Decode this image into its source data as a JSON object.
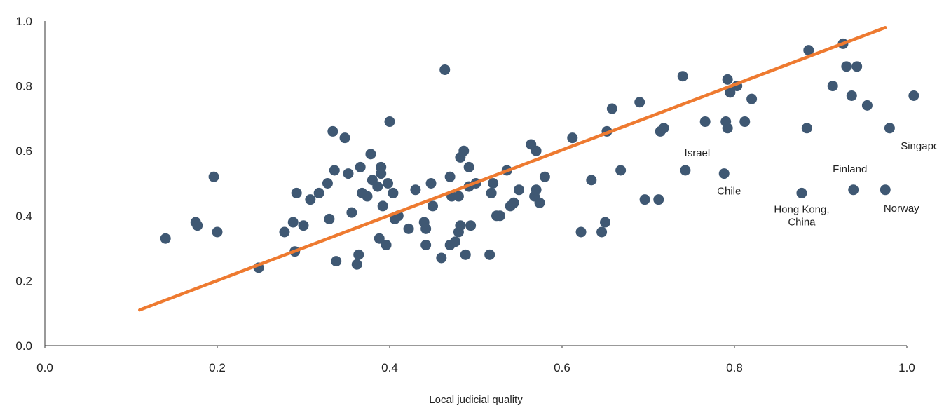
{
  "chart_data": {
    "type": "scatter",
    "title": "",
    "xlabel": "Local judicial quality",
    "ylabel": "",
    "xlim": [
      0,
      1
    ],
    "ylim": [
      0,
      1
    ],
    "x_ticks": [
      "0.0",
      "0.2",
      "0.4",
      "0.6",
      "0.8",
      "1.0"
    ],
    "y_ticks": [
      "0.0",
      "0.2",
      "0.4",
      "0.6",
      "0.8",
      "1.0"
    ],
    "grid": false,
    "colors": {
      "points": "#3f5873",
      "trend": "#ee7a30",
      "axis": "#333333"
    },
    "points": [
      [
        0.14,
        0.33
      ],
      [
        0.175,
        0.38
      ],
      [
        0.177,
        0.37
      ],
      [
        0.196,
        0.52
      ],
      [
        0.2,
        0.35
      ],
      [
        0.248,
        0.24
      ],
      [
        0.278,
        0.35
      ],
      [
        0.288,
        0.38
      ],
      [
        0.29,
        0.29
      ],
      [
        0.292,
        0.47
      ],
      [
        0.3,
        0.37
      ],
      [
        0.308,
        0.45
      ],
      [
        0.318,
        0.47
      ],
      [
        0.328,
        0.5
      ],
      [
        0.33,
        0.39
      ],
      [
        0.334,
        0.66
      ],
      [
        0.336,
        0.54
      ],
      [
        0.338,
        0.26
      ],
      [
        0.348,
        0.64
      ],
      [
        0.352,
        0.53
      ],
      [
        0.356,
        0.41
      ],
      [
        0.362,
        0.25
      ],
      [
        0.364,
        0.28
      ],
      [
        0.366,
        0.55
      ],
      [
        0.368,
        0.47
      ],
      [
        0.374,
        0.46
      ],
      [
        0.378,
        0.59
      ],
      [
        0.38,
        0.51
      ],
      [
        0.386,
        0.49
      ],
      [
        0.388,
        0.33
      ],
      [
        0.39,
        0.55
      ],
      [
        0.39,
        0.53
      ],
      [
        0.392,
        0.43
      ],
      [
        0.396,
        0.31
      ],
      [
        0.398,
        0.5
      ],
      [
        0.4,
        0.69
      ],
      [
        0.404,
        0.47
      ],
      [
        0.406,
        0.39
      ],
      [
        0.41,
        0.4
      ],
      [
        0.422,
        0.36
      ],
      [
        0.43,
        0.48
      ],
      [
        0.44,
        0.38
      ],
      [
        0.442,
        0.36
      ],
      [
        0.442,
        0.31
      ],
      [
        0.448,
        0.5
      ],
      [
        0.45,
        0.43
      ],
      [
        0.46,
        0.27
      ],
      [
        0.464,
        0.85
      ],
      [
        0.47,
        0.52
      ],
      [
        0.47,
        0.31
      ],
      [
        0.472,
        0.46
      ],
      [
        0.476,
        0.32
      ],
      [
        0.48,
        0.46
      ],
      [
        0.48,
        0.35
      ],
      [
        0.482,
        0.37
      ],
      [
        0.482,
        0.58
      ],
      [
        0.486,
        0.6
      ],
      [
        0.488,
        0.28
      ],
      [
        0.492,
        0.55
      ],
      [
        0.492,
        0.49
      ],
      [
        0.494,
        0.37
      ],
      [
        0.5,
        0.5
      ],
      [
        0.516,
        0.28
      ],
      [
        0.518,
        0.47
      ],
      [
        0.52,
        0.5
      ],
      [
        0.524,
        0.4
      ],
      [
        0.528,
        0.4
      ],
      [
        0.536,
        0.54
      ],
      [
        0.54,
        0.43
      ],
      [
        0.544,
        0.44
      ],
      [
        0.55,
        0.48
      ],
      [
        0.564,
        0.62
      ],
      [
        0.568,
        0.46
      ],
      [
        0.57,
        0.6
      ],
      [
        0.57,
        0.48
      ],
      [
        0.574,
        0.44
      ],
      [
        0.58,
        0.52
      ],
      [
        0.612,
        0.64
      ],
      [
        0.622,
        0.35
      ],
      [
        0.634,
        0.51
      ],
      [
        0.646,
        0.35
      ],
      [
        0.65,
        0.38
      ],
      [
        0.652,
        0.66
      ],
      [
        0.658,
        0.73
      ],
      [
        0.668,
        0.54
      ],
      [
        0.69,
        0.75
      ],
      [
        0.696,
        0.45
      ],
      [
        0.712,
        0.45
      ],
      [
        0.714,
        0.66
      ],
      [
        0.718,
        0.67
      ],
      [
        0.74,
        0.83
      ],
      [
        0.743,
        0.54
      ],
      [
        0.766,
        0.69
      ],
      [
        0.788,
        0.53
      ],
      [
        0.79,
        0.69
      ],
      [
        0.792,
        0.67
      ],
      [
        0.792,
        0.82
      ],
      [
        0.795,
        0.78
      ],
      [
        0.803,
        0.8
      ],
      [
        0.812,
        0.69
      ],
      [
        0.82,
        0.76
      ],
      [
        0.878,
        0.47
      ],
      [
        0.884,
        0.67
      ],
      [
        0.886,
        0.91
      ],
      [
        0.914,
        0.8
      ],
      [
        0.926,
        0.93
      ],
      [
        0.93,
        0.86
      ],
      [
        0.936,
        0.77
      ],
      [
        0.938,
        0.48
      ],
      [
        0.942,
        0.86
      ],
      [
        0.954,
        0.74
      ],
      [
        0.975,
        0.48
      ],
      [
        0.98,
        0.67
      ],
      [
        1.008,
        0.77
      ]
    ],
    "trendline": {
      "x": [
        0.11,
        0.975
      ],
      "y": [
        0.11,
        0.98
      ]
    },
    "annotations": [
      {
        "text": "Israel",
        "x": 0.743,
        "y": 0.54
      },
      {
        "text": "Chile",
        "x": 0.788,
        "y": 0.53
      },
      {
        "text": "Hong Kong,",
        "x": 0.878,
        "y": 0.47
      },
      {
        "text": "China",
        "x": 0.878,
        "y": 0.47
      },
      {
        "text": "Finland",
        "x": 0.938,
        "y": 0.48
      },
      {
        "text": "Norway",
        "x": 0.975,
        "y": 0.48
      },
      {
        "text": "Singapore",
        "x": 0.98,
        "y": 0.67
      }
    ]
  }
}
